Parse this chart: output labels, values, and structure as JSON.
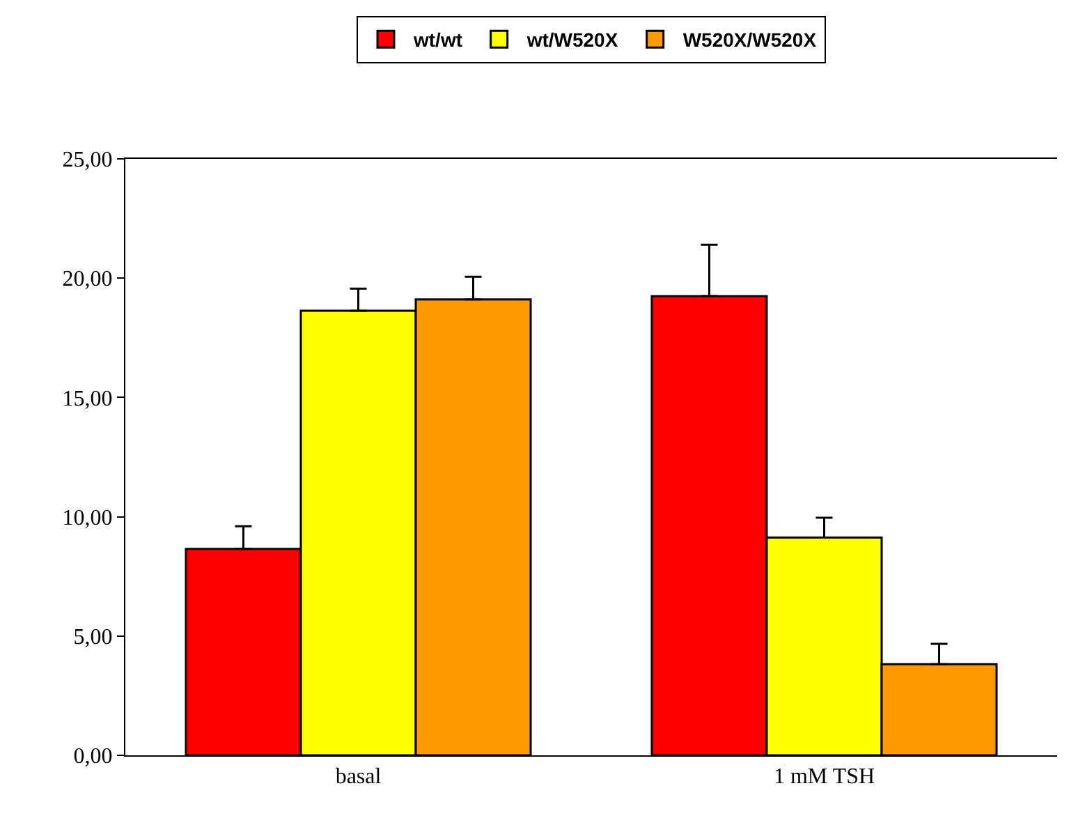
{
  "chart_data": {
    "type": "bar",
    "categories": [
      "basal",
      "1 mM TSH"
    ],
    "series": [
      {
        "name": "wt/wt",
        "color": "#ff0000",
        "values": [
          8.65,
          19.25
        ],
        "errors": [
          [
            8.65,
            9.6
          ],
          [
            19.25,
            21.4
          ]
        ]
      },
      {
        "name": "wt/W520X",
        "color": "#ffff00",
        "values": [
          18.63,
          9.13
        ],
        "errors": [
          [
            18.63,
            19.56
          ],
          [
            9.13,
            9.96
          ]
        ]
      },
      {
        "name": "W520X/W520X",
        "color": "#ff9900",
        "values": [
          19.11,
          3.82
        ],
        "errors": [
          [
            19.11,
            20.06
          ],
          [
            3.82,
            4.67
          ]
        ]
      }
    ],
    "ylim": [
      0,
      25
    ],
    "yticks": [
      {
        "value": 0,
        "label": "0,00"
      },
      {
        "value": 5,
        "label": "5,00"
      },
      {
        "value": 10,
        "label": "10,00"
      },
      {
        "value": 15,
        "label": "15,00"
      },
      {
        "value": 20,
        "label": "20,00"
      },
      {
        "value": 25,
        "label": "25,00"
      }
    ],
    "legend": "top"
  }
}
